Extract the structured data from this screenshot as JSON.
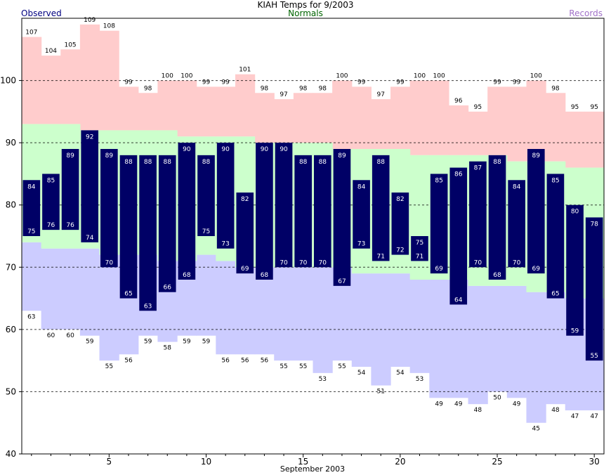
{
  "chart_data": {
    "type": "bar",
    "title": "KIAH Temps for 9/2003",
    "xlabel": "September 2003",
    "ylabel": "",
    "ylim": [
      40,
      110
    ],
    "xlim": [
      0.5,
      30.5
    ],
    "yticks": [
      40,
      50,
      60,
      70,
      80,
      90,
      100
    ],
    "xticks": [
      5,
      10,
      15,
      20,
      25,
      30
    ],
    "grid": "dashed horizontal at 50-100",
    "legend": {
      "observed": "Observed",
      "normals": "Normals",
      "records": "Records"
    },
    "colors": {
      "observed": "#000066",
      "observed_label": "#000080",
      "normals": "#ccffcc",
      "normals_label": "#006400",
      "record_high": "#ffcccc",
      "record_low": "#ccccff",
      "records_label": "#a070c8"
    },
    "days": [
      1,
      2,
      3,
      4,
      5,
      6,
      7,
      8,
      9,
      10,
      11,
      12,
      13,
      14,
      15,
      16,
      17,
      18,
      19,
      20,
      21,
      22,
      23,
      24,
      25,
      26,
      27,
      28,
      29,
      30
    ],
    "observed_high": [
      84,
      85,
      89,
      92,
      89,
      88,
      88,
      88,
      90,
      88,
      90,
      82,
      90,
      90,
      88,
      88,
      89,
      84,
      88,
      82,
      75,
      85,
      86,
      87,
      88,
      84,
      89,
      85,
      80,
      78
    ],
    "observed_low": [
      75,
      76,
      76,
      74,
      70,
      65,
      63,
      66,
      68,
      75,
      73,
      69,
      68,
      70,
      70,
      70,
      67,
      73,
      71,
      72,
      71,
      69,
      64,
      70,
      68,
      70,
      69,
      65,
      59,
      55
    ],
    "normal_high": [
      93,
      93,
      93,
      92,
      92,
      92,
      92,
      92,
      91,
      91,
      91,
      91,
      90,
      90,
      90,
      90,
      89,
      89,
      89,
      89,
      88,
      88,
      88,
      88,
      88,
      87,
      87,
      87,
      86,
      86
    ],
    "normal_low": [
      74,
      73,
      73,
      73,
      72,
      72,
      72,
      71,
      71,
      72,
      71,
      70,
      70,
      70,
      70,
      70,
      70,
      69,
      69,
      69,
      68,
      68,
      68,
      67,
      67,
      67,
      66,
      66,
      65,
      65
    ],
    "record_high": [
      107,
      104,
      105,
      109,
      108,
      99,
      98,
      100,
      100,
      99,
      99,
      101,
      98,
      97,
      98,
      98,
      100,
      99,
      97,
      99,
      100,
      100,
      96,
      95,
      99,
      99,
      100,
      98,
      95,
      95
    ],
    "record_low": [
      63,
      60,
      60,
      59,
      55,
      56,
      59,
      58,
      59,
      59,
      56,
      56,
      56,
      55,
      55,
      53,
      55,
      54,
      51,
      54,
      53,
      49,
      49,
      48,
      50,
      49,
      45,
      48,
      47,
      47
    ]
  }
}
